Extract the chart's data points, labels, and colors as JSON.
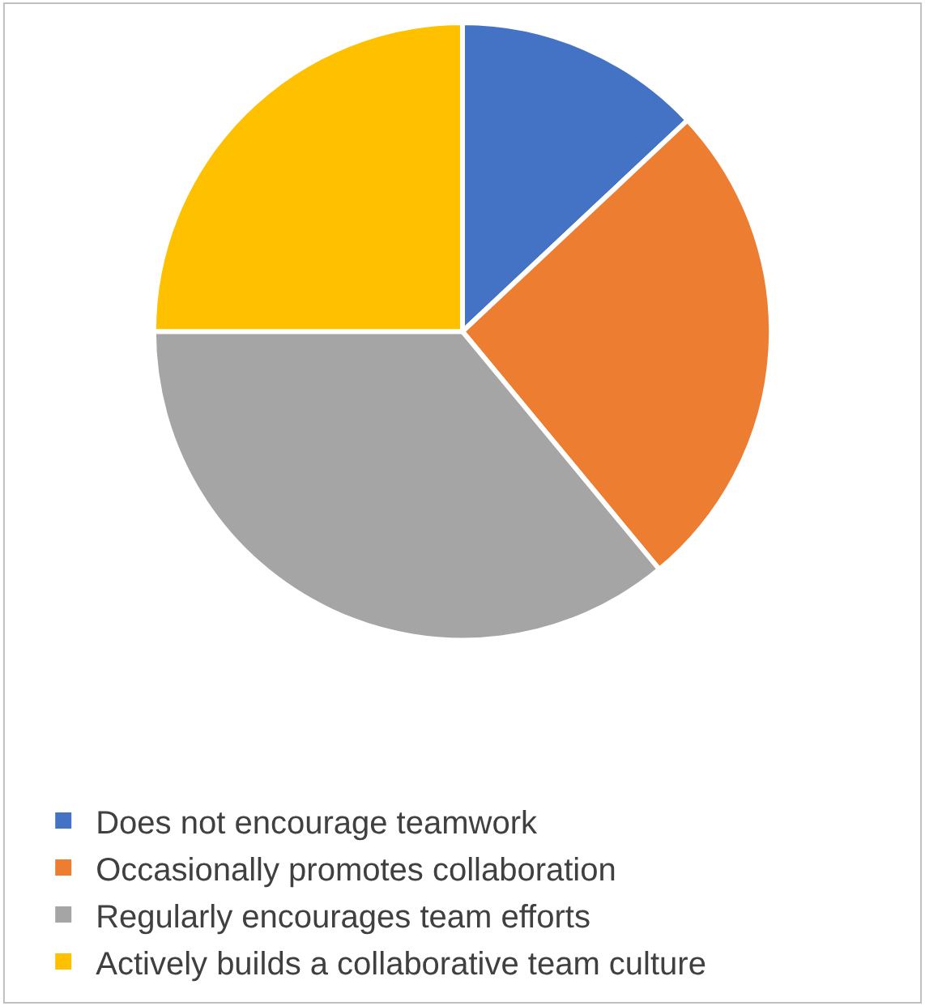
{
  "chart_data": {
    "type": "pie",
    "categories": [
      "Does not encourage teamwork",
      "Occasionally promotes collaboration",
      "Regularly encourages team efforts",
      "Actively builds a collaborative team culture"
    ],
    "values": [
      13,
      26,
      36,
      25
    ],
    "colors": [
      "#4472c4",
      "#ed7d31",
      "#a5a5a5",
      "#ffc000"
    ],
    "legend": "bottom"
  }
}
